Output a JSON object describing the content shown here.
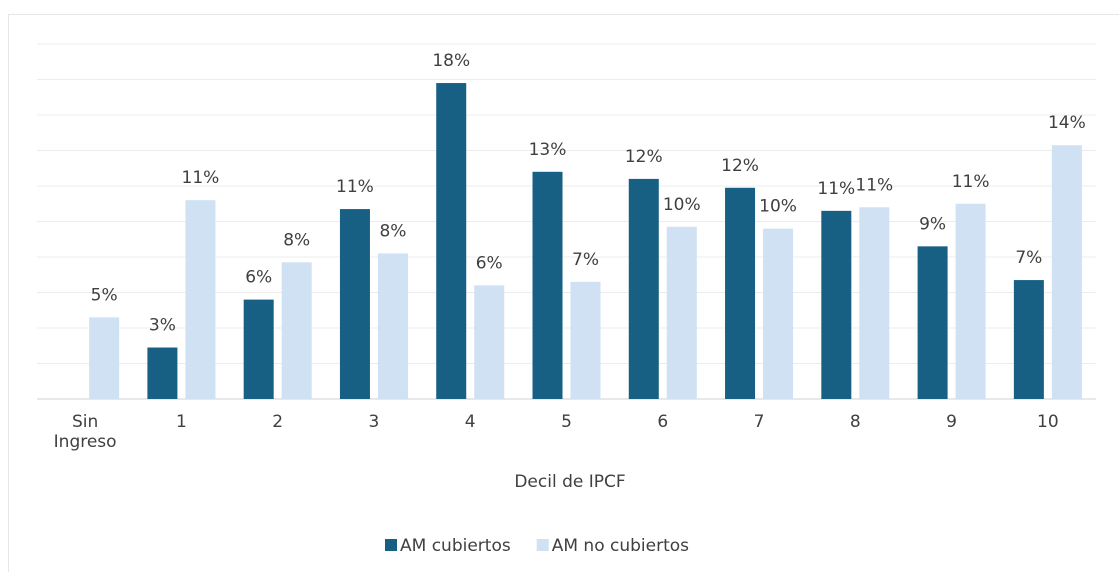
{
  "chart_data": {
    "type": "bar",
    "x_label": "Decil de IPCF",
    "categories": [
      "Sin Ingreso",
      "1",
      "2",
      "3",
      "4",
      "5",
      "6",
      "7",
      "8",
      "9",
      "10"
    ],
    "series": [
      {
        "name": "AM cubiertos",
        "color": "#175f83",
        "values": [
          null,
          2.9,
          5.6,
          10.7,
          17.8,
          12.8,
          12.4,
          11.9,
          10.6,
          8.6,
          6.7
        ],
        "value_labels": [
          null,
          "3%",
          "6%",
          "11%",
          "18%",
          "13%",
          "12%",
          "12%",
          "11%",
          "9%",
          "7%"
        ]
      },
      {
        "name": "AM no cubiertos",
        "color": "#cfe1f3",
        "values": [
          4.6,
          11.2,
          7.7,
          8.2,
          6.4,
          6.6,
          9.7,
          9.6,
          10.8,
          11.0,
          14.3
        ],
        "value_labels": [
          "5%",
          "11%",
          "8%",
          "8%",
          "6%",
          "7%",
          "10%",
          "10%",
          "11%",
          "11%",
          "14%"
        ]
      }
    ],
    "ylim": [
      0,
      20
    ],
    "yticks": [
      0,
      2,
      4,
      6,
      8,
      10,
      12,
      14,
      16,
      18,
      20
    ],
    "grid": true,
    "legend": "bottom"
  }
}
